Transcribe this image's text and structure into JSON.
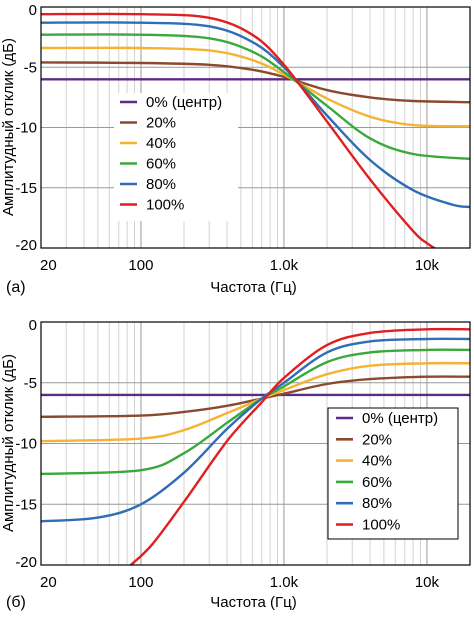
{
  "chart_data": [
    {
      "panel": "(a)",
      "type": "line",
      "xscale": "log",
      "xlabel": "Частота (Гц)",
      "ylabel": "Амплитудный отклик (дБ)",
      "xlim": [
        20,
        20000
      ],
      "ylim": [
        -20,
        0
      ],
      "xticks": [
        {
          "value": 20,
          "label": "20"
        },
        {
          "value": 100,
          "label": "100"
        },
        {
          "value": 1000,
          "label": "1.0k"
        },
        {
          "value": 10000,
          "label": "10k"
        }
      ],
      "yticks": [
        {
          "value": 0,
          "label": "0"
        },
        {
          "value": -5,
          "label": "-5"
        },
        {
          "value": -10,
          "label": "-10"
        },
        {
          "value": -15,
          "label": "-15"
        },
        {
          "value": -20,
          "label": "-20"
        }
      ],
      "grid": true,
      "legend_position": "left",
      "series": [
        {
          "name": "0% (центр)",
          "color": "#5b2c86",
          "x": [
            20,
            20000
          ],
          "y": [
            -6.0,
            -6.0
          ]
        },
        {
          "name": "20%",
          "color": "#8b4a2f",
          "x": [
            20,
            100,
            300,
            600,
            1000,
            2000,
            4000,
            8000,
            20000
          ],
          "y": [
            -4.6,
            -4.65,
            -4.8,
            -5.2,
            -5.8,
            -6.9,
            -7.5,
            -7.8,
            -7.9
          ]
        },
        {
          "name": "40%",
          "color": "#f5b335",
          "x": [
            20,
            100,
            300,
            600,
            1000,
            2000,
            4000,
            8000,
            20000
          ],
          "y": [
            -3.4,
            -3.4,
            -3.6,
            -4.4,
            -5.6,
            -7.6,
            -9.1,
            -9.8,
            -9.9
          ]
        },
        {
          "name": "60%",
          "color": "#3aa83a",
          "x": [
            20,
            100,
            300,
            600,
            1000,
            2000,
            4000,
            8000,
            20000
          ],
          "y": [
            -2.3,
            -2.3,
            -2.6,
            -3.7,
            -5.4,
            -8.2,
            -10.9,
            -12.2,
            -12.6
          ]
        },
        {
          "name": "80%",
          "color": "#2f6db4",
          "x": [
            20,
            100,
            300,
            600,
            1000,
            2000,
            4000,
            8000,
            15000,
            20000
          ],
          "y": [
            -1.3,
            -1.3,
            -1.6,
            -2.9,
            -5.0,
            -9.0,
            -12.7,
            -15.2,
            -16.4,
            -16.6
          ]
        },
        {
          "name": "100%",
          "color": "#e02020",
          "x": [
            20,
            100,
            300,
            600,
            1000,
            2000,
            4000,
            8000,
            10000,
            12000
          ],
          "y": [
            -0.6,
            -0.6,
            -0.9,
            -2.3,
            -4.8,
            -9.5,
            -14.3,
            -18.6,
            -19.6,
            -20.2
          ]
        }
      ]
    },
    {
      "panel": "(б)",
      "type": "line",
      "xscale": "log",
      "xlabel": "Частота (Гц)",
      "ylabel": "Амплитудный отклик (дБ)",
      "xlim": [
        20,
        20000
      ],
      "ylim": [
        -20,
        0
      ],
      "xticks": [
        {
          "value": 20,
          "label": "20"
        },
        {
          "value": 100,
          "label": "100"
        },
        {
          "value": 1000,
          "label": "1.0k"
        },
        {
          "value": 10000,
          "label": "10k"
        }
      ],
      "yticks": [
        {
          "value": 0,
          "label": "0"
        },
        {
          "value": -5,
          "label": "-5"
        },
        {
          "value": -10,
          "label": "-10"
        },
        {
          "value": -15,
          "label": "-15"
        },
        {
          "value": -20,
          "label": "-20"
        }
      ],
      "grid": true,
      "legend_position": "right",
      "series": [
        {
          "name": "0% (центр)",
          "color": "#5b2c86",
          "x": [
            20,
            20000
          ],
          "y": [
            -6.0,
            -6.0
          ]
        },
        {
          "name": "20%",
          "color": "#8b4a2f",
          "x": [
            20,
            100,
            200,
            400,
            700,
            1000,
            2000,
            4000,
            10000,
            20000
          ],
          "y": [
            -7.8,
            -7.7,
            -7.4,
            -6.9,
            -6.3,
            -5.9,
            -5.1,
            -4.7,
            -4.5,
            -4.5
          ]
        },
        {
          "name": "40%",
          "color": "#f5b335",
          "x": [
            20,
            100,
            200,
            400,
            700,
            1000,
            2000,
            4000,
            10000,
            20000
          ],
          "y": [
            -9.8,
            -9.6,
            -8.9,
            -7.5,
            -6.3,
            -5.6,
            -4.3,
            -3.6,
            -3.4,
            -3.4
          ]
        },
        {
          "name": "60%",
          "color": "#3aa83a",
          "x": [
            20,
            100,
            200,
            400,
            700,
            1000,
            2000,
            4000,
            10000,
            20000
          ],
          "y": [
            -12.5,
            -12.2,
            -10.8,
            -8.3,
            -6.3,
            -5.3,
            -3.3,
            -2.5,
            -2.3,
            -2.3
          ]
        },
        {
          "name": "80%",
          "color": "#2f6db4",
          "x": [
            20,
            50,
            100,
            200,
            400,
            700,
            1000,
            2000,
            4000,
            10000,
            20000
          ],
          "y": [
            -16.4,
            -16.1,
            -15.0,
            -12.4,
            -8.8,
            -6.3,
            -5.0,
            -2.5,
            -1.6,
            -1.4,
            -1.4
          ]
        },
        {
          "name": "100%",
          "color": "#e02020",
          "x": [
            85,
            120,
            200,
            400,
            700,
            1000,
            2000,
            4000,
            10000,
            20000
          ],
          "y": [
            -20.0,
            -18.3,
            -14.8,
            -9.8,
            -6.6,
            -4.6,
            -1.9,
            -0.9,
            -0.6,
            -0.6
          ]
        }
      ]
    }
  ]
}
